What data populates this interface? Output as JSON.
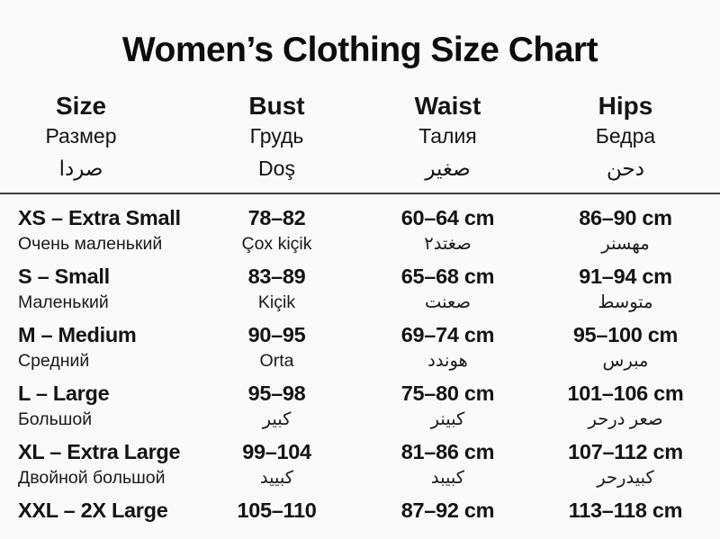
{
  "title": "Women’s Clothing Size Chart",
  "colors": {
    "background": "#fafafa",
    "text": "#141414",
    "divider": "#3f3f3f"
  },
  "table": {
    "headers": [
      {
        "en": "Size",
        "line2": "Размер",
        "line3": "صردا"
      },
      {
        "en": "Bust",
        "line2": "Грудь",
        "line3": "Doş"
      },
      {
        "en": "Waist",
        "line2": "Талия",
        "line3": "صغير"
      },
      {
        "en": "Hips",
        "line2": "Бедра",
        "line3": "دحن"
      }
    ],
    "rows": [
      {
        "size": "XS – Extra Small",
        "size_sub": "Очень маленький",
        "bust": "78–82",
        "bust_sub": "Çox kiçik",
        "waist": "60–64 cm",
        "waist_sub": "صغتد٢",
        "hips": "86–90 cm",
        "hips_sub": "مهسنر"
      },
      {
        "size": "S – Small",
        "size_sub": "Маленький",
        "bust": "83–89",
        "bust_sub": "Kiçik",
        "waist": "65–68 cm",
        "waist_sub": "صعنت",
        "hips": "91–94 cm",
        "hips_sub": "متوسط"
      },
      {
        "size": "M – Medium",
        "size_sub": "Средний",
        "bust": "90–95",
        "bust_sub": "Orta",
        "waist": "69–74 cm",
        "waist_sub": "هوندد",
        "hips": "95–100 cm",
        "hips_sub": "مبرس"
      },
      {
        "size": "L – Large",
        "size_sub": "Большой",
        "bust": "95–98",
        "bust_sub": "كبير",
        "waist": "75–80 cm",
        "waist_sub": "كبينر",
        "hips": "101–106 cm",
        "hips_sub": "صعر درحر"
      },
      {
        "size": "XL – Extra Large",
        "size_sub": "Двойной большой",
        "bust": "99–104",
        "bust_sub": "كبييد",
        "waist": "81–86 cm",
        "waist_sub": "كبيبد",
        "hips": "107–112 cm",
        "hips_sub": "كبيدرحر"
      },
      {
        "size": "XXL – 2X Large",
        "size_sub": "",
        "bust": "105–110",
        "bust_sub": "",
        "waist": "87–92 cm",
        "waist_sub": "",
        "hips": "113–118 cm",
        "hips_sub": ""
      }
    ]
  }
}
